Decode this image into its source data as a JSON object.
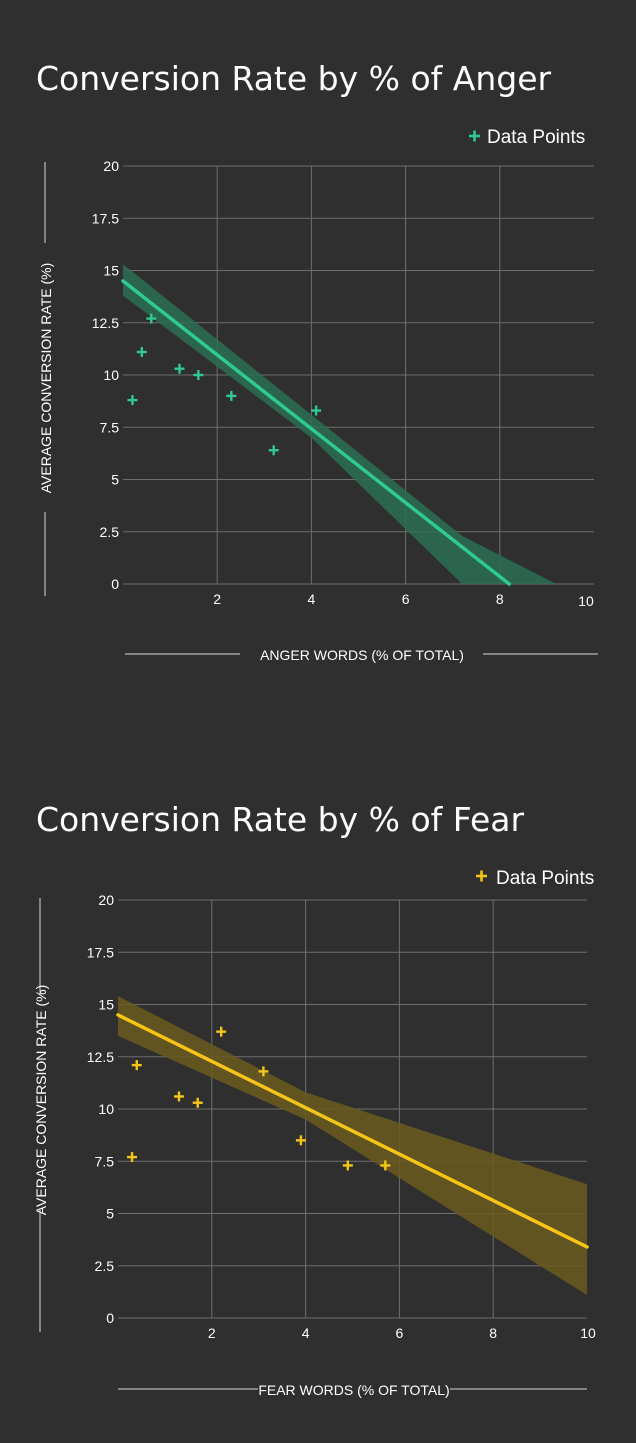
{
  "chart_data": [
    {
      "type": "scatter",
      "title": "Conversion Rate by % of Anger",
      "xlabel": "ANGER WORDS (% OF TOTAL)",
      "ylabel": "AVERAGE CONVERSION RATE (%)",
      "legend": "Data Points",
      "legend_position": "top-right",
      "marker": "plus",
      "color": "#2ec995",
      "band_color": "#2a6e52",
      "grid": true,
      "xlim": [
        0,
        10
      ],
      "ylim": [
        0,
        20
      ],
      "x_ticks": [
        "2",
        "4",
        "6",
        "8",
        "10"
      ],
      "y_ticks": [
        "0",
        "2.5",
        "5",
        "7.5",
        "10",
        "12.5",
        "15",
        "17.5",
        "20"
      ],
      "points": [
        {
          "x": 0.2,
          "y": 8.8
        },
        {
          "x": 0.4,
          "y": 11.1
        },
        {
          "x": 0.6,
          "y": 12.7
        },
        {
          "x": 1.2,
          "y": 10.3
        },
        {
          "x": 1.6,
          "y": 10.0
        },
        {
          "x": 2.3,
          "y": 9.0
        },
        {
          "x": 3.2,
          "y": 6.4
        },
        {
          "x": 4.1,
          "y": 8.3
        }
      ],
      "fit_line": {
        "x": [
          0,
          8.2
        ],
        "y": [
          14.5,
          0
        ]
      },
      "confidence_band": {
        "x": [
          0,
          4,
          7.2,
          9.2
        ],
        "upper": [
          15.3,
          8.1,
          2.3,
          0
        ],
        "lower": [
          13.8,
          7.0,
          0,
          0
        ]
      }
    },
    {
      "type": "scatter",
      "title": "Conversion Rate by % of Fear",
      "xlabel": "FEAR WORDS (% OF TOTAL)",
      "ylabel": "AVERAGE CONVERSION RATE (%)",
      "legend": "Data Points",
      "legend_position": "top-right",
      "marker": "plus",
      "color": "#f5c518",
      "band_color": "#6b5a1e",
      "grid": true,
      "xlim": [
        0,
        10
      ],
      "ylim": [
        0,
        20
      ],
      "x_ticks": [
        "2",
        "4",
        "6",
        "8",
        "10"
      ],
      "y_ticks": [
        "0",
        "2.5",
        "5",
        "7.5",
        "10",
        "12.5",
        "15",
        "17.5",
        "20"
      ],
      "points": [
        {
          "x": 0.3,
          "y": 7.7
        },
        {
          "x": 0.4,
          "y": 12.1
        },
        {
          "x": 1.3,
          "y": 10.6
        },
        {
          "x": 1.7,
          "y": 10.3
        },
        {
          "x": 2.2,
          "y": 13.7
        },
        {
          "x": 3.1,
          "y": 11.8
        },
        {
          "x": 3.9,
          "y": 8.5
        },
        {
          "x": 4.9,
          "y": 7.3
        },
        {
          "x": 5.7,
          "y": 7.3
        }
      ],
      "fit_line": {
        "x": [
          0,
          10
        ],
        "y": [
          14.5,
          3.4
        ]
      },
      "confidence_band": {
        "x": [
          0,
          4,
          10
        ],
        "upper": [
          15.4,
          10.8,
          6.4
        ],
        "lower": [
          13.5,
          9.5,
          1.1
        ]
      }
    }
  ]
}
